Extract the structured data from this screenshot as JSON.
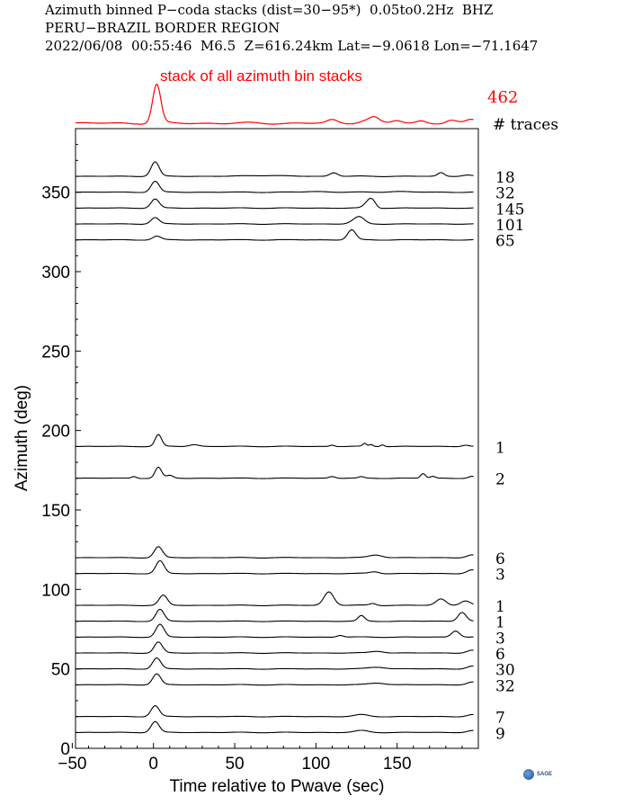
{
  "header": {
    "line1": "Azimuth binned P−coda stacks (dist=30−95*)  0.05to0.2Hz  BHZ",
    "line2": "PERU−BRAZIL BORDER REGION",
    "line3": "2022/06/08  00:55:46  M6.5  Z=616.24km Lat=−9.0618 Lon=−71.1647"
  },
  "logo": {
    "text": "SAGE"
  },
  "chart_data": {
    "type": "line",
    "title": "stack of all azimuth bin stacks",
    "total_traces": "462",
    "traces_label": "# traces",
    "xlabel": "Time relative to Pwave (sec)",
    "ylabel": "Azimuth (deg)",
    "xlim": [
      -48,
      200
    ],
    "ylim": [
      0,
      390
    ],
    "xticks": [
      -50,
      0,
      50,
      100,
      150
    ],
    "xtick_labels": [
      "−50",
      "0",
      "50",
      "100",
      "150"
    ],
    "yticks": [
      0,
      50,
      100,
      150,
      200,
      250,
      300,
      350
    ],
    "ytick_labels": [
      "0",
      "50",
      "100",
      "150",
      "200",
      "250",
      "300",
      "350"
    ],
    "grid": false,
    "stack": {
      "color": "#ff0000",
      "peaks": [
        [
          2,
          1.0,
          2.5
        ],
        [
          110,
          0.08,
          3
        ],
        [
          130,
          0.07,
          4
        ],
        [
          136,
          0.13,
          3
        ],
        [
          150,
          0.07,
          3
        ],
        [
          165,
          0.06,
          3
        ],
        [
          183,
          0.07,
          3
        ],
        [
          196,
          0.09,
          3
        ]
      ]
    },
    "series": [
      {
        "azimuth": 360,
        "count": "18",
        "peaks": [
          [
            1,
            16,
            2.5
          ],
          [
            68,
            1,
            10
          ],
          [
            111,
            4,
            2.5
          ],
          [
            177,
            4,
            2
          ],
          [
            193,
            1.5,
            3
          ]
        ]
      },
      {
        "azimuth": 350,
        "count": "32",
        "peaks": [
          [
            1,
            12,
            2.5
          ],
          [
            100,
            0.8,
            6
          ],
          [
            150,
            0.8,
            6
          ]
        ]
      },
      {
        "azimuth": 340,
        "count": "145",
        "peaks": [
          [
            1,
            10,
            2.5
          ],
          [
            134,
            11,
            3
          ],
          [
            138,
            -2,
            2
          ]
        ]
      },
      {
        "azimuth": 330,
        "count": "101",
        "peaks": [
          [
            1,
            7,
            2.5
          ],
          [
            127,
            7,
            3
          ],
          [
            123,
            2,
            3
          ]
        ]
      },
      {
        "azimuth": 320,
        "count": "65",
        "peaks": [
          [
            2,
            4,
            2.5
          ],
          [
            122,
            11,
            2.5
          ]
        ]
      },
      {
        "azimuth": 190,
        "count": "1",
        "peaks": [
          [
            3,
            13,
            2
          ],
          [
            25,
            2,
            3
          ],
          [
            110,
            1.5,
            1.5
          ],
          [
            130,
            3,
            1.2
          ],
          [
            134,
            2,
            1.2
          ],
          [
            141,
            2,
            1.2
          ],
          [
            192,
            1.5,
            2
          ]
        ]
      },
      {
        "azimuth": 170,
        "count": "2",
        "peaks": [
          [
            3,
            12,
            2
          ],
          [
            10,
            3,
            2
          ],
          [
            -12,
            2,
            1.5
          ],
          [
            110,
            2,
            2
          ],
          [
            128,
            1.5,
            1.5
          ],
          [
            166,
            5,
            1.5
          ],
          [
            172,
            2,
            1.5
          ],
          [
            196,
            2,
            2
          ]
        ]
      },
      {
        "azimuth": 120,
        "count": "6",
        "peaks": [
          [
            3,
            12,
            2.5
          ],
          [
            137,
            3,
            4
          ],
          [
            196,
            3,
            3
          ]
        ]
      },
      {
        "azimuth": 110,
        "count": "3",
        "peaks": [
          [
            4,
            14,
            2.5
          ],
          [
            136,
            2,
            3
          ],
          [
            196,
            4,
            3
          ]
        ]
      },
      {
        "azimuth": 90,
        "count": "1",
        "peaks": [
          [
            6,
            11,
            2.5
          ],
          [
            108,
            15,
            3
          ],
          [
            135,
            2,
            2
          ],
          [
            177,
            7,
            3
          ],
          [
            192,
            5,
            3
          ]
        ]
      },
      {
        "azimuth": 80,
        "count": "1",
        "peaks": [
          [
            4,
            13,
            2.5
          ],
          [
            128,
            6,
            2
          ],
          [
            190,
            10,
            2.5
          ]
        ]
      },
      {
        "azimuth": 70,
        "count": "3",
        "peaks": [
          [
            4,
            14,
            2.5
          ],
          [
            115,
            2,
            2
          ],
          [
            186,
            7,
            2.5
          ]
        ]
      },
      {
        "azimuth": 60,
        "count": "6",
        "peaks": [
          [
            3,
            12,
            2.5
          ],
          [
            138,
            2,
            4
          ],
          [
            196,
            3,
            3
          ]
        ]
      },
      {
        "azimuth": 50,
        "count": "30",
        "peaks": [
          [
            2,
            12,
            2.5
          ],
          [
            138,
            2,
            5
          ],
          [
            196,
            3,
            3
          ]
        ]
      },
      {
        "azimuth": 40,
        "count": "32",
        "peaks": [
          [
            2,
            12,
            2.5
          ],
          [
            138,
            2,
            5
          ],
          [
            196,
            3,
            3
          ]
        ]
      },
      {
        "azimuth": 20,
        "count": "7",
        "peaks": [
          [
            1,
            12,
            2.5
          ],
          [
            128,
            2,
            4
          ],
          [
            196,
            2,
            3
          ]
        ]
      },
      {
        "azimuth": 10,
        "count": "9",
        "peaks": [
          [
            1,
            12,
            2.5
          ],
          [
            128,
            2,
            4
          ],
          [
            196,
            2,
            3
          ]
        ]
      }
    ]
  }
}
